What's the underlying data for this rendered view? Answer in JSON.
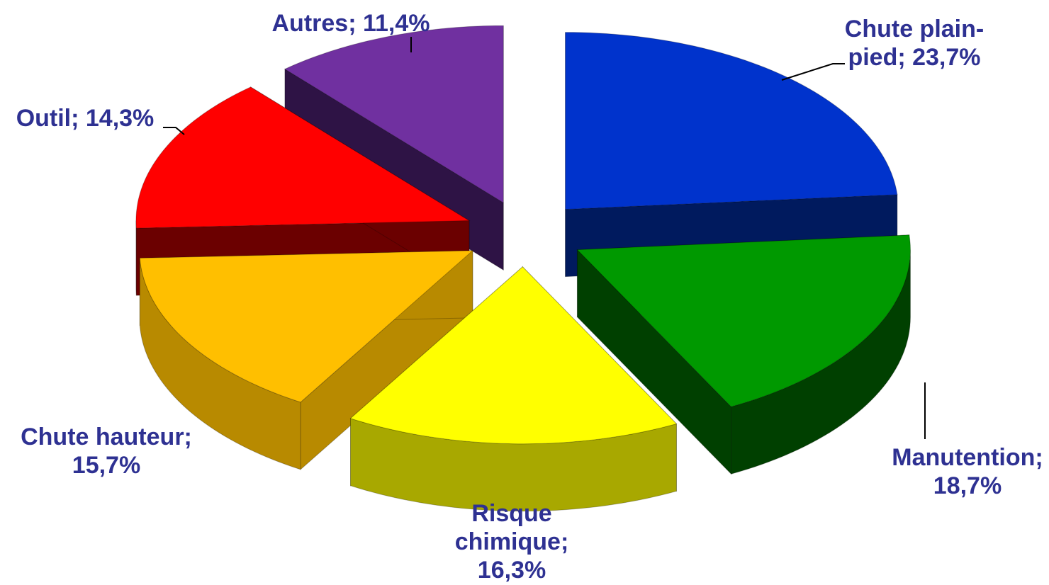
{
  "chart_data": {
    "type": "pie",
    "style": "3d-exploded",
    "title": "",
    "slices": [
      {
        "name": "Chute plain-pied",
        "value": 23.7,
        "label_lines": [
          "Chute plain-",
          "pied; 23,7%"
        ],
        "color": "#0033cc",
        "side_color": "#001a5e"
      },
      {
        "name": "Manutention",
        "value": 18.7,
        "label_lines": [
          "Manutention;",
          "18,7%"
        ],
        "color": "#009900",
        "side_color": "#004000"
      },
      {
        "name": "Risque chimique",
        "value": 16.3,
        "label_lines": [
          "Risque",
          "chimique;",
          "16,3%"
        ],
        "color": "#ffff00",
        "side_color": "#a8a800"
      },
      {
        "name": "Chute hauteur",
        "value": 15.7,
        "label_lines": [
          "Chute hauteur;",
          "15,7%"
        ],
        "color": "#ffbf00",
        "side_color": "#b88a00"
      },
      {
        "name": "Outil",
        "value": 14.3,
        "label_lines": [
          "Outil; 14,3%"
        ],
        "color": "#ff0000",
        "side_color": "#6b0000"
      },
      {
        "name": "Autres",
        "value": 11.4,
        "label_lines": [
          "Autres; 11,4%"
        ],
        "color": "#7030a0",
        "side_color": "#2e1345"
      }
    ],
    "label_color": "#2e3192",
    "legend": "none"
  }
}
